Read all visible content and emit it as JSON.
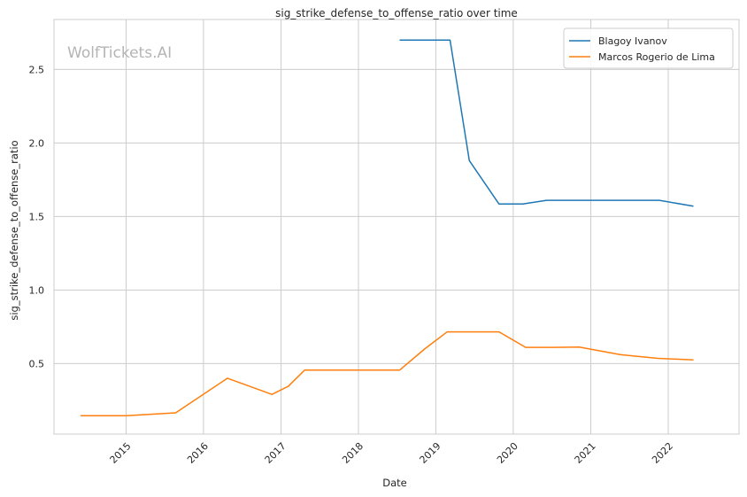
{
  "watermark": "WolfTickets.AI",
  "chart_data": {
    "type": "line",
    "title": "sig_strike_defense_to_offense_ratio over time",
    "xlabel": "Date",
    "ylabel": "sig_strike_defense_to_offense_ratio",
    "xlim": [
      "2014-01-26",
      "2022-12-01"
    ],
    "ylim": [
      0.02,
      2.84
    ],
    "x_ticks": [
      {
        "date": "2015-01-01",
        "label": "2015"
      },
      {
        "date": "2016-01-01",
        "label": "2016"
      },
      {
        "date": "2017-01-01",
        "label": "2017"
      },
      {
        "date": "2018-01-01",
        "label": "2018"
      },
      {
        "date": "2019-01-01",
        "label": "2019"
      },
      {
        "date": "2020-01-01",
        "label": "2020"
      },
      {
        "date": "2021-01-01",
        "label": "2021"
      },
      {
        "date": "2022-01-01",
        "label": "2022"
      }
    ],
    "y_ticks": [
      {
        "value": 0.5,
        "label": "0.5"
      },
      {
        "value": 1.0,
        "label": "1.0"
      },
      {
        "value": 1.5,
        "label": "1.5"
      },
      {
        "value": 2.0,
        "label": "2.0"
      },
      {
        "value": 2.5,
        "label": "2.5"
      }
    ],
    "grid": true,
    "legend_position": "top-right",
    "series": [
      {
        "name": "Blagoy Ivanov",
        "color": "#1f77b4",
        "points": [
          {
            "x": "2018-07-14",
            "y": 2.7
          },
          {
            "x": "2019-03-09",
            "y": 2.7
          },
          {
            "x": "2019-06-08",
            "y": 1.88
          },
          {
            "x": "2019-10-26",
            "y": 1.585
          },
          {
            "x": "2020-02-15",
            "y": 1.585
          },
          {
            "x": "2020-06-06",
            "y": 1.61
          },
          {
            "x": "2021-01-01",
            "y": 1.61
          },
          {
            "x": "2021-11-20",
            "y": 1.61
          },
          {
            "x": "2022-04-30",
            "y": 1.57
          }
        ]
      },
      {
        "name": "Marcos Rogerio de Lima",
        "color": "#ff7f0e",
        "points": [
          {
            "x": "2014-05-31",
            "y": 0.145
          },
          {
            "x": "2015-01-01",
            "y": 0.145
          },
          {
            "x": "2015-08-23",
            "y": 0.165
          },
          {
            "x": "2016-04-23",
            "y": 0.4
          },
          {
            "x": "2016-11-19",
            "y": 0.29
          },
          {
            "x": "2017-02-04",
            "y": 0.345
          },
          {
            "x": "2017-04-22",
            "y": 0.455
          },
          {
            "x": "2018-07-14",
            "y": 0.455
          },
          {
            "x": "2018-11-10",
            "y": 0.6
          },
          {
            "x": "2019-02-23",
            "y": 0.715
          },
          {
            "x": "2019-10-26",
            "y": 0.715
          },
          {
            "x": "2020-02-29",
            "y": 0.61
          },
          {
            "x": "2020-06-27",
            "y": 0.61
          },
          {
            "x": "2020-11-07",
            "y": 0.612
          },
          {
            "x": "2021-05-22",
            "y": 0.56
          },
          {
            "x": "2021-11-13",
            "y": 0.535
          },
          {
            "x": "2022-04-30",
            "y": 0.525
          }
        ]
      }
    ]
  }
}
